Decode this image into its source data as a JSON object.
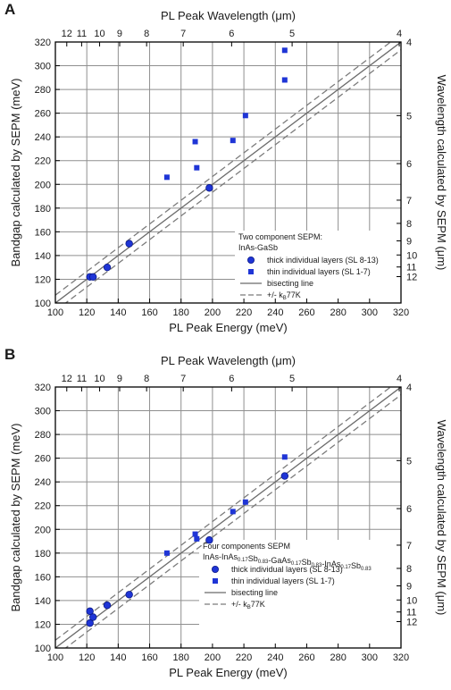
{
  "chart_data": [
    {
      "type": "scatter",
      "panel_label": "A",
      "xlabel": "PL Peak Energy (meV)",
      "ylabel": "Bandgap calculated  by SEPM (meV)",
      "top_xlabel": "PL Peak Wavelength  (μm)",
      "right_ylabel": "Wavelength calculated by SEPM (μm)",
      "xlim": [
        100,
        320
      ],
      "ylim": [
        100,
        320
      ],
      "x_ticks": [
        100,
        120,
        140,
        160,
        180,
        200,
        220,
        240,
        260,
        280,
        300,
        320
      ],
      "y_ticks": [
        100,
        120,
        140,
        160,
        180,
        200,
        220,
        240,
        260,
        280,
        300,
        320
      ],
      "top_ticks": [
        "12",
        "11",
        "10",
        "9",
        "8",
        "7",
        "6",
        "5",
        "4"
      ],
      "right_ticks": [
        "4",
        "5",
        "6",
        "7",
        "8",
        "9",
        "10",
        "11",
        "12"
      ],
      "grid": true,
      "legend_title": "Two component SEPM:",
      "legend_subtitle": "InAs-GaSb",
      "series": [
        {
          "name": "thick individual layers (SL 8-13)",
          "marker": "circle",
          "color": "#1f35d6",
          "points": [
            [
              122,
              122
            ],
            [
              124,
              122
            ],
            [
              133,
              130
            ],
            [
              147,
              150
            ],
            [
              198,
              197
            ]
          ]
        },
        {
          "name": "thin individual layers (SL 1-7)",
          "marker": "square",
          "color": "#1f35d6",
          "points": [
            [
              171,
              206
            ],
            [
              189,
              236
            ],
            [
              190,
              214
            ],
            [
              213,
              237
            ],
            [
              221,
              258
            ],
            [
              246,
              288
            ],
            [
              246,
              313
            ]
          ]
        },
        {
          "name": "bisecting line",
          "style": "solid",
          "color": "#666666"
        },
        {
          "name": "+/- kʙ",
          "style": "dashed",
          "color": "#666666"
        }
      ],
      "legend_entries": [
        {
          "label": "thick individual layers (SL 8-13)"
        },
        {
          "label": "thin individual layers (SL 1-7)"
        },
        {
          "label": "bisecting line"
        },
        {
          "label": "+/- k",
          "sub": "B",
          "suffix": "77K"
        }
      ]
    },
    {
      "type": "scatter",
      "panel_label": "B",
      "xlabel": "PL Peak Energy (meV)",
      "ylabel": "Bandgap calculated  by SEPM (meV)",
      "top_xlabel": "PL Peak Wavelength  (μm)",
      "right_ylabel": "Wavelength calculated by SEPM (μm)",
      "xlim": [
        100,
        320
      ],
      "ylim": [
        100,
        320
      ],
      "x_ticks": [
        100,
        120,
        140,
        160,
        180,
        200,
        220,
        240,
        260,
        280,
        300,
        320
      ],
      "y_ticks": [
        100,
        120,
        140,
        160,
        180,
        200,
        220,
        240,
        260,
        280,
        300,
        320
      ],
      "top_ticks": [
        "12",
        "11",
        "10",
        "9",
        "8",
        "7",
        "6",
        "5",
        "4"
      ],
      "right_ticks": [
        "4",
        "5",
        "6",
        "7",
        "8",
        "9",
        "10",
        "11",
        "12"
      ],
      "grid": true,
      "legend_title": "Four components SEPM",
      "legend_subtitle": "InAs-InAs0.17Sb0.83-GaAs0.17Sb0.83-InAs0.17Sb0.83",
      "series": [
        {
          "name": "thick individual layers (SL 8-13)",
          "marker": "circle",
          "color": "#1f35d6",
          "points": [
            [
              122,
              131
            ],
            [
              122,
              121
            ],
            [
              124,
              126
            ],
            [
              133,
              136
            ],
            [
              147,
              145
            ],
            [
              198,
              191
            ],
            [
              246,
              245
            ]
          ]
        },
        {
          "name": "thin individual layers (SL 1-7)",
          "marker": "square",
          "color": "#1f35d6",
          "points": [
            [
              171,
              180
            ],
            [
              189,
              196
            ],
            [
              190,
              192
            ],
            [
              213,
              215
            ],
            [
              221,
              223
            ],
            [
              246,
              261
            ]
          ]
        },
        {
          "name": "bisecting line",
          "style": "solid",
          "color": "#666666"
        },
        {
          "name": "+/- kB77K",
          "style": "dashed",
          "color": "#666666"
        }
      ],
      "legend_entries": [
        {
          "label": "thick individual layers (SL 8-13)"
        },
        {
          "label": "thin individual layers (SL 1-7)"
        },
        {
          "label": "bisecting line"
        },
        {
          "label": "+/- k",
          "sub": "B",
          "suffix": "77K"
        }
      ]
    }
  ]
}
